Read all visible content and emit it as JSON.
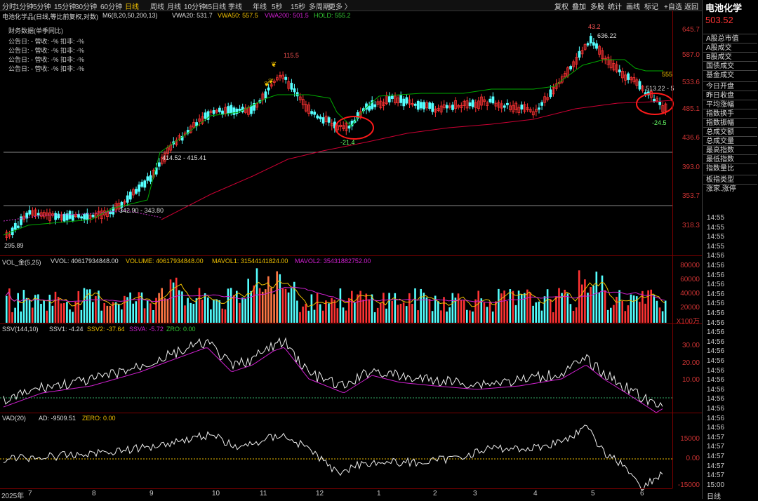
{
  "toolbar": {
    "periods": [
      "分时",
      "1分钟",
      "5分钟",
      "15分钟",
      "30分钟",
      "60分钟",
      "日线",
      "周线",
      "月线",
      "10分钟",
      "45日线",
      "季线",
      "年线",
      "5秒",
      "15秒",
      "多周期",
      "更多 〉"
    ],
    "active_period": "日线",
    "right_buttons": [
      "复权",
      "叠加",
      "多股",
      "统计",
      "画线",
      "标记",
      "+自选",
      "返回"
    ]
  },
  "main_info": {
    "title": "电池化学品(日线,等比前复权,对数)",
    "m6": "M6(8,20,50,200,13)",
    "vwa20": "VWA20: 531.7",
    "vwa50": "VWA50: 557.5",
    "vwa200": "VWA200: 501.5",
    "hold": "HOLD: 555.2"
  },
  "financial": {
    "title": "财务数据(单季同比)",
    "rows": [
      "公告日: -    营收: -%   扣非: -%",
      "公告日: -    营收: -%   扣非: -%",
      "公告日: -    营收: -%   扣非: -%",
      "公告日: -    营收: -%   扣非: -%"
    ]
  },
  "price_axis": [
    "645.7",
    "587.0",
    "533.6",
    "485.1",
    "436.6",
    "393.0",
    "353.7",
    "318.3"
  ],
  "price_annotations": {
    "low": "295.89",
    "peak1": "115.5",
    "peak2": "43.2",
    "peak2_price": "636.22",
    "hold_line": "555",
    "current": "513.22 - 5",
    "dip1": "-21.4",
    "dip2": "-24.5",
    "band1": "414.52 - 415.41",
    "band2": "342.90 - 343.80"
  },
  "volume": {
    "info": {
      "name": "VOL_金(5,25)",
      "vvol": "VVOL: 40617934848.00",
      "volume": "VOLUME: 40617934848.00",
      "mavol1": "MAVOL1: 31544141824.00",
      "mavol2": "MAVOL2: 35431882752.00"
    },
    "axis": [
      "80000",
      "60000",
      "40000",
      "20000",
      "X100万"
    ]
  },
  "ssv": {
    "info": {
      "name": "SSV(144,10)",
      "ssv1": "SSV1: -4.24",
      "ssv2": "SSV2: -37.64",
      "ssva": "SSVA: -5.72",
      "zro": "ZRO: 0.00"
    },
    "axis": [
      "30.00",
      "20.00",
      "10.00"
    ]
  },
  "vad": {
    "info": {
      "name": "VAD(20)",
      "ad": "AD: -9509.51",
      "zero": "ZERO: 0.00"
    },
    "axis": [
      "15000",
      "0.00",
      "-15000"
    ]
  },
  "x_axis": {
    "year": "2025年",
    "months": [
      "7",
      "8",
      "9",
      "10",
      "11",
      "12",
      "1",
      "2",
      "3",
      "4",
      "5",
      "6"
    ]
  },
  "sidebar": {
    "title": "电池化学",
    "price": "503.52",
    "menu": [
      "A股总市值",
      "A股成交",
      "B股成交",
      "国债成交",
      "基金成交",
      "今日开盘",
      "昨日收盘",
      "平均涨幅",
      "指数换手",
      "指数振幅",
      "总成交额",
      "总成交量",
      "最高指数",
      "最低指数",
      "指数量比",
      "板指类型",
      "涨家.涨停"
    ],
    "times": [
      "14:55",
      "14:55",
      "14:55",
      "14:55",
      "14:56",
      "14:56",
      "14:56",
      "14:56",
      "14:56",
      "14:56",
      "14:56",
      "14:56",
      "14:56",
      "14:56",
      "14:56",
      "14:56",
      "14:56",
      "14:56",
      "14:56",
      "14:56",
      "14:56",
      "14:56",
      "14:56",
      "14:57",
      "14:57",
      "14:57",
      "14:57",
      "14:57",
      "15:00",
      "日线"
    ]
  },
  "colors": {
    "up": "#ff3333",
    "down": "#54ffff",
    "vwa20": "#00aa00",
    "vwa200": "#cc0033",
    "hold": "#cc33cc",
    "yellow": "#f0c000",
    "magenta": "#d020d0"
  }
}
